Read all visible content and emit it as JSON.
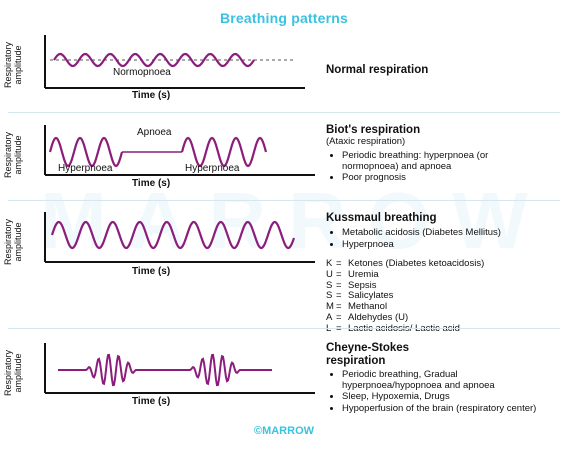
{
  "title": "Breathing patterns",
  "axis": {
    "y_label": "Respiratory amplitude",
    "x_label": "Time (s)"
  },
  "colors": {
    "wave": "#8b1d7c",
    "accent": "#39c3e0",
    "baseline": "#555555"
  },
  "panels": {
    "normal": {
      "name": "Normal respiration",
      "wave_label": "Normopnoea"
    },
    "biot": {
      "name": "Biot's respiration",
      "subtitle": "(Ataxic respiration)",
      "labels": {
        "apnoea": "Apnoea",
        "hyper_left": "Hyperpnoea",
        "hyper_right": "Hyperpnoea"
      },
      "bullets": [
        "Periodic breathing: hyperpnoea (or normopnoea) and apnoea",
        "Poor prognosis"
      ]
    },
    "kussmaul": {
      "name": "Kussmaul breathing",
      "bullets": [
        "Metabolic acidosis (Diabetes Mellitus)",
        "Hyperpnoea"
      ],
      "mnemonic": [
        {
          "letter": "K",
          "eq": "=",
          "text": "Ketones (Diabetes ketoacidosis)"
        },
        {
          "letter": "U",
          "eq": "=",
          "text": "Uremia"
        },
        {
          "letter": "S",
          "eq": "=",
          "text": "Sepsis"
        },
        {
          "letter": "S",
          "eq": "=",
          "text": "Salicylates"
        },
        {
          "letter": "M",
          "eq": "=",
          "text": "Methanol"
        },
        {
          "letter": "A",
          "eq": "=",
          "text": "Aldehydes (U)"
        },
        {
          "letter": "L",
          "eq": "=",
          "text": "Lactic acidosis/ Lactic acid"
        }
      ]
    },
    "cheyne": {
      "name": "Cheyne-Stokes respiration",
      "bullets": [
        "Periodic breathing, Gradual hyperpnoea/hypopnoea and apnoea",
        "Sleep, Hypoxemia, Drugs",
        "Hypoperfusion of the brain (respiratory center)"
      ]
    }
  },
  "watermark": "MARROW",
  "footer": "©MARROW"
}
